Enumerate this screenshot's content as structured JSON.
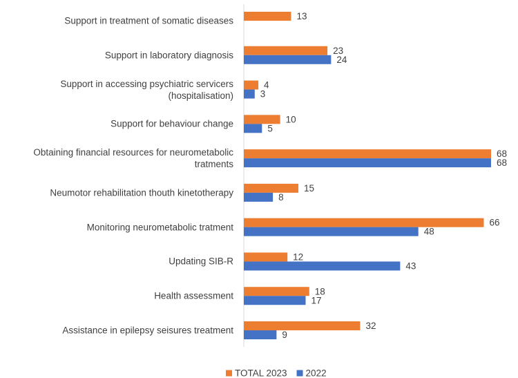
{
  "chart_data": {
    "type": "bar",
    "orientation": "horizontal",
    "categories": [
      "Support in treatment of somatic diseases",
      "Support in laboratory diagnosis",
      "Support in accessing psychiatric servicers (hospitalisation)",
      "Support for behaviour change",
      "Obtaining financial resources for neurometabolic tratments",
      "Neumotor rehabilitation thouth kinetotherapy",
      "Monitoring neurometabolic tratment",
      "Updating SIB-R",
      "Health assessment",
      "Assistance in epilepsy seisures treatment"
    ],
    "series": [
      {
        "name": "TOTAL 2023",
        "color": "#ED7D31",
        "values": [
          13,
          23,
          4,
          10,
          68,
          15,
          66,
          12,
          18,
          32
        ]
      },
      {
        "name": "2022",
        "color": "#4472C4",
        "values": [
          null,
          24,
          3,
          5,
          68,
          8,
          48,
          43,
          17,
          9
        ]
      }
    ],
    "xlim": [
      0,
      68
    ],
    "legend": "bottom"
  }
}
